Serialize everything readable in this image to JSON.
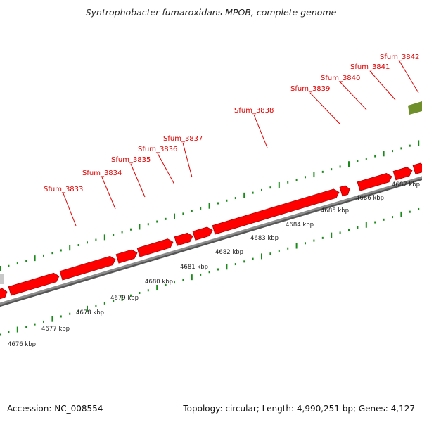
{
  "title": "Syntrophobacter fumaroxidans MPOB, complete genome",
  "footer": {
    "accession": "Accession: NC_008554",
    "summary": "Topology: circular; Length: 4,990,251 bp; Genes: 4,127"
  },
  "colors": {
    "gene": "#ff0000",
    "gene_dark": "#b00000",
    "gene_label": "#e00000",
    "tick": "#1a8a1a",
    "backbone": "#8c8c8c",
    "backbone_shadow": "#555555",
    "other_gene": "#6f8f2a",
    "gray_gene": "#c8c8c8"
  },
  "genes": [
    {
      "label": "Sfum_3833"
    },
    {
      "label": "Sfum_3834"
    },
    {
      "label": "Sfum_3835"
    },
    {
      "label": "Sfum_3836"
    },
    {
      "label": "Sfum_3837"
    },
    {
      "label": "Sfum_3838"
    },
    {
      "label": "Sfum_3839"
    },
    {
      "label": "Sfum_3840"
    },
    {
      "label": "Sfum_3841"
    },
    {
      "label": "Sfum_3842"
    }
  ],
  "scale": {
    "labels": [
      "4676 kbp",
      "4677 kbp",
      "4678 kbp",
      "4679 kbp",
      "4680 kbp",
      "4681 kbp",
      "4682 kbp",
      "4683 kbp",
      "4684 kbp",
      "4685 kbp",
      "4686 kbp",
      "4687 kbp"
    ]
  }
}
